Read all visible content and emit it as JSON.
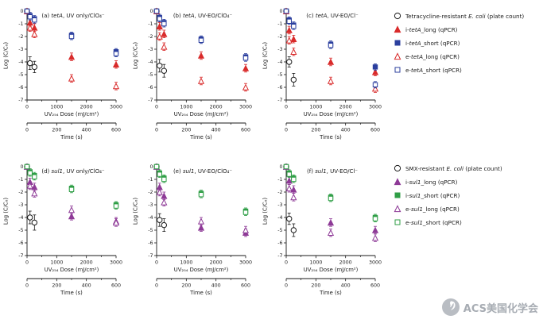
{
  "watermark": {
    "text": "ACS美国化学会"
  },
  "figure": {
    "xlabel": "UV₂₅₄ Dose (mJ/cm²)",
    "x2label": "Time (s)",
    "ylabel": "Log (C/C₀)",
    "xlim": [
      0,
      3000
    ],
    "ylim": [
      -7,
      0
    ],
    "x2lim": [
      0,
      600
    ],
    "xticks": [
      0,
      1000,
      2000,
      3000
    ],
    "xminor": [
      500,
      1500,
      2500
    ],
    "x2ticks": [
      0,
      200,
      400,
      600
    ],
    "x2minor": [
      100,
      300,
      500
    ],
    "yticks": [
      0,
      -1,
      -2,
      -3,
      -4,
      -5,
      -6,
      -7
    ]
  },
  "legend_groups": [
    {
      "items": [
        {
          "marker": "circle",
          "fill": "open",
          "color": "#1a1a1a",
          "parts": [
            [
              "Tetracycline-resistant ",
              0
            ],
            [
              "E. coli",
              1
            ],
            [
              " (plate count)",
              0
            ]
          ]
        },
        {
          "marker": "triangle",
          "fill": "solid",
          "color": "#d92b2b",
          "parts": [
            [
              "i-",
              0
            ],
            [
              "tetA",
              1
            ],
            [
              "_long (qPCR)",
              0
            ]
          ]
        },
        {
          "marker": "square",
          "fill": "solid",
          "color": "#2b3f9e",
          "parts": [
            [
              "i-",
              0
            ],
            [
              "tetA",
              1
            ],
            [
              "_short (qPCR)",
              0
            ]
          ]
        },
        {
          "marker": "triangle",
          "fill": "open",
          "color": "#d92b2b",
          "parts": [
            [
              "e-",
              0
            ],
            [
              "tetA",
              1
            ],
            [
              "_long (qPCR)",
              0
            ]
          ]
        },
        {
          "marker": "square",
          "fill": "open",
          "color": "#2b3f9e",
          "parts": [
            [
              "e-",
              0
            ],
            [
              "tetA",
              1
            ],
            [
              "_short (qPCR)",
              0
            ]
          ]
        }
      ]
    },
    {
      "items": [
        {
          "marker": "circle",
          "fill": "open",
          "color": "#1a1a1a",
          "parts": [
            [
              "SMX-resistant ",
              0
            ],
            [
              "E. coli",
              1
            ],
            [
              " (plate count)",
              0
            ]
          ]
        },
        {
          "marker": "triangle",
          "fill": "solid",
          "color": "#8e3a97",
          "parts": [
            [
              "i-",
              0
            ],
            [
              "sul1",
              1
            ],
            [
              "_long (qPCR)",
              0
            ]
          ]
        },
        {
          "marker": "square",
          "fill": "solid",
          "color": "#2f9e46",
          "parts": [
            [
              "i-",
              0
            ],
            [
              "sul1",
              1
            ],
            [
              "_short (qPCR)",
              0
            ]
          ]
        },
        {
          "marker": "triangle",
          "fill": "open",
          "color": "#8e3a97",
          "parts": [
            [
              "e-",
              0
            ],
            [
              "sul1",
              1
            ],
            [
              "_long (qPCR)",
              0
            ]
          ]
        },
        {
          "marker": "square",
          "fill": "open",
          "color": "#2f9e46",
          "parts": [
            [
              "e-",
              0
            ],
            [
              "sul1",
              1
            ],
            [
              "_short (qPCR)",
              0
            ]
          ]
        }
      ]
    }
  ],
  "chart_data": [
    {
      "type": "scatter",
      "id": "a",
      "title_prefix": "(a) ",
      "title_gene": "tetA",
      "title_rest": ", UV only/ClO₄⁻",
      "series": [
        {
          "name": "Tetracycline-resistant E. coli (plate count)",
          "marker": "circle",
          "fill": "open",
          "color": "#1a1a1a",
          "x": [
            0,
            100,
            250
          ],
          "y": [
            0,
            -4.1,
            -4.4
          ],
          "err": [
            0.15,
            0.5,
            0.45
          ]
        },
        {
          "name": "i-tetA_long",
          "marker": "triangle",
          "fill": "solid",
          "color": "#d92b2b",
          "x": [
            0,
            100,
            250,
            1500,
            3000
          ],
          "y": [
            0,
            -0.9,
            -1.3,
            -3.6,
            -4.2
          ],
          "err": 0.3
        },
        {
          "name": "i-tetA_short",
          "marker": "square",
          "fill": "solid",
          "color": "#2b3f9e",
          "x": [
            0,
            100,
            250,
            1500,
            3000
          ],
          "y": [
            0,
            -0.35,
            -0.6,
            -1.9,
            -3.2
          ],
          "err": 0.25
        },
        {
          "name": "e-tetA_long",
          "marker": "triangle",
          "fill": "open",
          "color": "#d92b2b",
          "x": [
            0,
            100,
            250,
            1500,
            3000
          ],
          "y": [
            0,
            -1.3,
            -1.8,
            -5.3,
            -5.9
          ],
          "err": 0.3
        },
        {
          "name": "e-tetA_short",
          "marker": "square",
          "fill": "open",
          "color": "#2b3f9e",
          "x": [
            0,
            100,
            250,
            1500,
            3000
          ],
          "y": [
            0,
            -0.45,
            -0.7,
            -2.0,
            -3.35
          ],
          "err": 0.25
        }
      ]
    },
    {
      "type": "scatter",
      "id": "b",
      "title_prefix": "(b) ",
      "title_gene": "tetA",
      "title_rest": ", UV-EO/ClO₄⁻",
      "series": [
        {
          "name": "Tetracycline-resistant E. coli (plate count)",
          "marker": "circle",
          "fill": "open",
          "color": "#1a1a1a",
          "x": [
            0,
            100,
            250
          ],
          "y": [
            0,
            -4.3,
            -4.7
          ],
          "err": [
            0.15,
            0.5,
            0.5
          ]
        },
        {
          "name": "i-tetA_long",
          "marker": "triangle",
          "fill": "solid",
          "color": "#d92b2b",
          "x": [
            0,
            100,
            250,
            1500,
            3000
          ],
          "y": [
            0,
            -1.2,
            -1.8,
            -3.5,
            -4.5
          ],
          "err": 0.3
        },
        {
          "name": "i-tetA_short",
          "marker": "square",
          "fill": "solid",
          "color": "#2b3f9e",
          "x": [
            0,
            100,
            250,
            1500,
            3000
          ],
          "y": [
            0,
            -0.5,
            -0.9,
            -2.2,
            -3.6
          ],
          "err": 0.25
        },
        {
          "name": "e-tetA_long",
          "marker": "triangle",
          "fill": "open",
          "color": "#d92b2b",
          "x": [
            0,
            100,
            250,
            1500,
            3000
          ],
          "y": [
            0,
            -2.0,
            -2.8,
            -5.5,
            -6.0
          ],
          "err": 0.3
        },
        {
          "name": "e-tetA_short",
          "marker": "square",
          "fill": "open",
          "color": "#2b3f9e",
          "x": [
            0,
            100,
            250,
            1500,
            3000
          ],
          "y": [
            0,
            -0.6,
            -1.0,
            -2.3,
            -3.7
          ],
          "err": 0.25
        }
      ]
    },
    {
      "type": "scatter",
      "id": "c",
      "title_prefix": "(c) ",
      "title_gene": "tetA",
      "title_rest": ", UV-EO/Cl⁻",
      "series": [
        {
          "name": "Tetracycline-resistant E. coli (plate count)",
          "marker": "circle",
          "fill": "open",
          "color": "#1a1a1a",
          "x": [
            0,
            100,
            250
          ],
          "y": [
            0,
            -4.0,
            -5.4
          ],
          "err": [
            0.15,
            0.4,
            0.5
          ]
        },
        {
          "name": "i-tetA_long",
          "marker": "triangle",
          "fill": "solid",
          "color": "#d92b2b",
          "x": [
            0,
            100,
            250,
            1500,
            3000
          ],
          "y": [
            0,
            -1.5,
            -2.2,
            -4.0,
            -4.8
          ],
          "err": 0.3
        },
        {
          "name": "i-tetA_short",
          "marker": "square",
          "fill": "solid",
          "color": "#2b3f9e",
          "x": [
            0,
            100,
            250,
            1500,
            3000
          ],
          "y": [
            0,
            -0.7,
            -1.1,
            -2.6,
            -4.4
          ],
          "err": 0.25
        },
        {
          "name": "e-tetA_long",
          "marker": "triangle",
          "fill": "open",
          "color": "#d92b2b",
          "x": [
            0,
            100,
            250,
            1500,
            3000
          ],
          "y": [
            0,
            -2.3,
            -3.2,
            -5.5,
            -6.1
          ],
          "err": 0.3
        },
        {
          "name": "e-tetA_short",
          "marker": "square",
          "fill": "open",
          "color": "#2b3f9e",
          "x": [
            0,
            100,
            250,
            1500,
            3000
          ],
          "y": [
            0,
            -0.8,
            -1.2,
            -2.7,
            -5.8
          ],
          "err": 0.25
        }
      ]
    },
    {
      "type": "scatter",
      "id": "d",
      "title_prefix": "(d) ",
      "title_gene": "sul1",
      "title_rest": ", UV only/ClO₄⁻",
      "series": [
        {
          "name": "SMX-resistant E. coli (plate count)",
          "marker": "circle",
          "fill": "open",
          "color": "#1a1a1a",
          "x": [
            0,
            100,
            250
          ],
          "y": [
            0,
            -4.0,
            -4.4
          ],
          "err": [
            0.15,
            0.5,
            0.6
          ]
        },
        {
          "name": "i-sul1_long",
          "marker": "triangle",
          "fill": "solid",
          "color": "#8e3a97",
          "x": [
            0,
            100,
            250,
            1500,
            3000
          ],
          "y": [
            0,
            -1.2,
            -1.6,
            -3.9,
            -4.3
          ],
          "err": 0.3
        },
        {
          "name": "i-sul1_short",
          "marker": "square",
          "fill": "solid",
          "color": "#2f9e46",
          "x": [
            0,
            100,
            250,
            1500,
            3000
          ],
          "y": [
            0,
            -0.4,
            -0.7,
            -1.7,
            -3.0
          ],
          "err": 0.25
        },
        {
          "name": "e-sul1_long",
          "marker": "triangle",
          "fill": "open",
          "color": "#8e3a97",
          "x": [
            0,
            100,
            250,
            1500,
            3000
          ],
          "y": [
            0,
            -1.5,
            -2.1,
            -3.4,
            -4.4
          ],
          "err": 0.3
        },
        {
          "name": "e-sul1_short",
          "marker": "square",
          "fill": "open",
          "color": "#2f9e46",
          "x": [
            0,
            100,
            250,
            1500,
            3000
          ],
          "y": [
            0,
            -0.5,
            -0.8,
            -1.8,
            -3.1
          ],
          "err": 0.25
        }
      ]
    },
    {
      "type": "scatter",
      "id": "e",
      "title_prefix": "(e) ",
      "title_gene": "sul1",
      "title_rest": ", UV-EO/ClO₄⁻",
      "series": [
        {
          "name": "SMX-resistant E. coli (plate count)",
          "marker": "circle",
          "fill": "open",
          "color": "#1a1a1a",
          "x": [
            0,
            100,
            250
          ],
          "y": [
            0,
            -4.2,
            -4.6
          ],
          "err": [
            0.15,
            0.5,
            0.5
          ]
        },
        {
          "name": "i-sul1_long",
          "marker": "triangle",
          "fill": "solid",
          "color": "#8e3a97",
          "x": [
            0,
            100,
            250,
            1500,
            3000
          ],
          "y": [
            0,
            -1.6,
            -2.3,
            -4.8,
            -5.2
          ],
          "err": 0.3
        },
        {
          "name": "i-sul1_short",
          "marker": "square",
          "fill": "solid",
          "color": "#2f9e46",
          "x": [
            0,
            100,
            250,
            1500,
            3000
          ],
          "y": [
            0,
            -0.5,
            -0.9,
            -2.1,
            -3.5
          ],
          "err": 0.25
        },
        {
          "name": "e-sul1_long",
          "marker": "triangle",
          "fill": "open",
          "color": "#8e3a97",
          "x": [
            0,
            100,
            250,
            1500,
            3000
          ],
          "y": [
            0,
            -2.0,
            -2.8,
            -4.3,
            -5.0
          ],
          "err": 0.3
        },
        {
          "name": "e-sul1_short",
          "marker": "square",
          "fill": "open",
          "color": "#2f9e46",
          "x": [
            0,
            100,
            250,
            1500,
            3000
          ],
          "y": [
            0,
            -0.6,
            -1.0,
            -2.2,
            -3.6
          ],
          "err": 0.25
        }
      ]
    },
    {
      "type": "scatter",
      "id": "f",
      "title_prefix": "(f) ",
      "title_gene": "sul1",
      "title_rest": ", UV-EO/Cl⁻",
      "series": [
        {
          "name": "SMX-resistant E. coli (plate count)",
          "marker": "circle",
          "fill": "open",
          "color": "#1a1a1a",
          "x": [
            0,
            100,
            250
          ],
          "y": [
            0,
            -4.1,
            -5.0
          ],
          "err": [
            0.15,
            0.45,
            0.5
          ]
        },
        {
          "name": "i-sul1_long",
          "marker": "triangle",
          "fill": "solid",
          "color": "#8e3a97",
          "x": [
            0,
            100,
            250,
            1500,
            3000
          ],
          "y": [
            0,
            -1.1,
            -1.8,
            -4.4,
            -5.0
          ],
          "err": 0.3
        },
        {
          "name": "i-sul1_short",
          "marker": "square",
          "fill": "solid",
          "color": "#2f9e46",
          "x": [
            0,
            100,
            250,
            1500,
            3000
          ],
          "y": [
            0,
            -0.5,
            -0.9,
            -2.4,
            -4.0
          ],
          "err": 0.25
        },
        {
          "name": "e-sul1_long",
          "marker": "triangle",
          "fill": "open",
          "color": "#8e3a97",
          "x": [
            0,
            100,
            250,
            1500,
            3000
          ],
          "y": [
            0,
            -1.7,
            -2.4,
            -5.2,
            -5.6
          ],
          "err": 0.3
        },
        {
          "name": "e-sul1_short",
          "marker": "square",
          "fill": "open",
          "color": "#2f9e46",
          "x": [
            0,
            100,
            250,
            1500,
            3000
          ],
          "y": [
            0,
            -0.6,
            -1.0,
            -2.5,
            -4.1
          ],
          "err": 0.25
        }
      ]
    }
  ]
}
